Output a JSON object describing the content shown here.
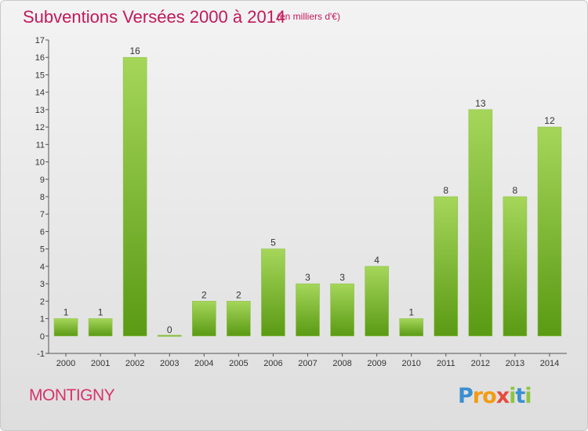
{
  "header": {
    "title": "Subventions Versées 2000 à 2014",
    "subtitle": "(en milliers d'€)"
  },
  "footer": {
    "commune": "MONTIGNY",
    "logo_letters": [
      "P",
      "r",
      "o",
      "x",
      "i",
      "t",
      "i"
    ],
    "logo_colors": [
      "#3a8fd1",
      "#f39c12",
      "#f39c12",
      "#e74c3c",
      "#8cc63f",
      "#3a8fd1",
      "#8cc63f"
    ]
  },
  "colors": {
    "bar_top": "#a5d65a",
    "bar_bottom": "#5a9a14",
    "text": "#333333"
  },
  "chart_data": {
    "type": "bar",
    "title": "Subventions Versées 2000 à 2014",
    "subtitle": "(en milliers d'€)",
    "categories": [
      "2000",
      "2001",
      "2002",
      "2003",
      "2004",
      "2005",
      "2006",
      "2007",
      "2008",
      "2009",
      "2010",
      "2011",
      "2012",
      "2013",
      "2014"
    ],
    "values": [
      1,
      1,
      16,
      0,
      2,
      2,
      5,
      3,
      3,
      4,
      1,
      8,
      13,
      8,
      12
    ],
    "ylim": [
      -1,
      17
    ],
    "yticks": [
      -1,
      0,
      1,
      2,
      3,
      4,
      5,
      6,
      7,
      8,
      9,
      10,
      11,
      12,
      13,
      14,
      15,
      16,
      17
    ],
    "grid": false,
    "legend": "none"
  }
}
